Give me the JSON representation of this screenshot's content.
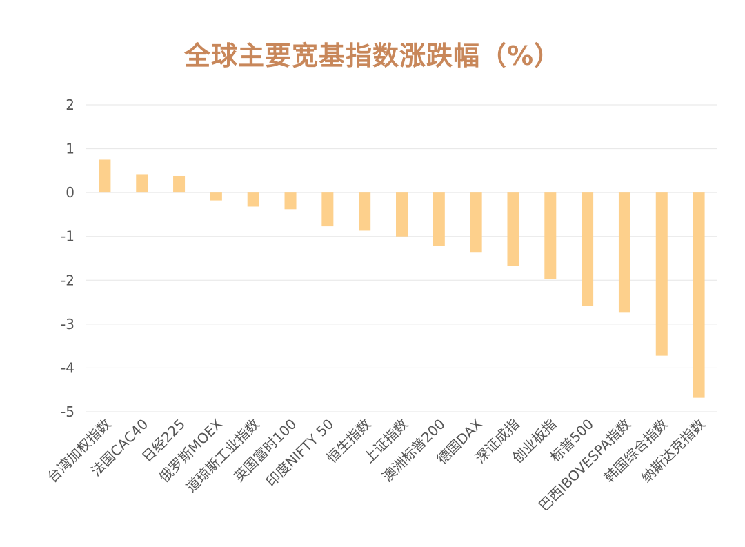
{
  "chart_data": {
    "type": "bar",
    "title": "全球主要宽基指数涨跌幅（%）",
    "xlabel": "",
    "ylabel": "",
    "ylim": [
      -5,
      2
    ],
    "yticks": [
      2,
      1,
      0,
      -1,
      -2,
      -3,
      -4,
      -5
    ],
    "grid": true,
    "legend": "none",
    "bar_color": "#fdd08c",
    "title_color": "#c8875a",
    "categories": [
      "台湾加权指数",
      "法国CAC40",
      "日经225",
      "俄罗斯MOEX",
      "道琼斯工业指数",
      "英国富时100",
      "印度NIFTY 50",
      "恒生指数",
      "上证指数",
      "澳洲标普200",
      "德国DAX",
      "深证成指",
      "创业板指",
      "标普500",
      "巴西IBOVESPA指数",
      "韩国综合指数",
      "纳斯达克指数"
    ],
    "values": [
      0.75,
      0.42,
      0.38,
      -0.18,
      -0.32,
      -0.38,
      -0.77,
      -0.87,
      -1.0,
      -1.22,
      -1.37,
      -1.67,
      -1.98,
      -2.58,
      -2.74,
      -3.72,
      -4.68
    ]
  }
}
